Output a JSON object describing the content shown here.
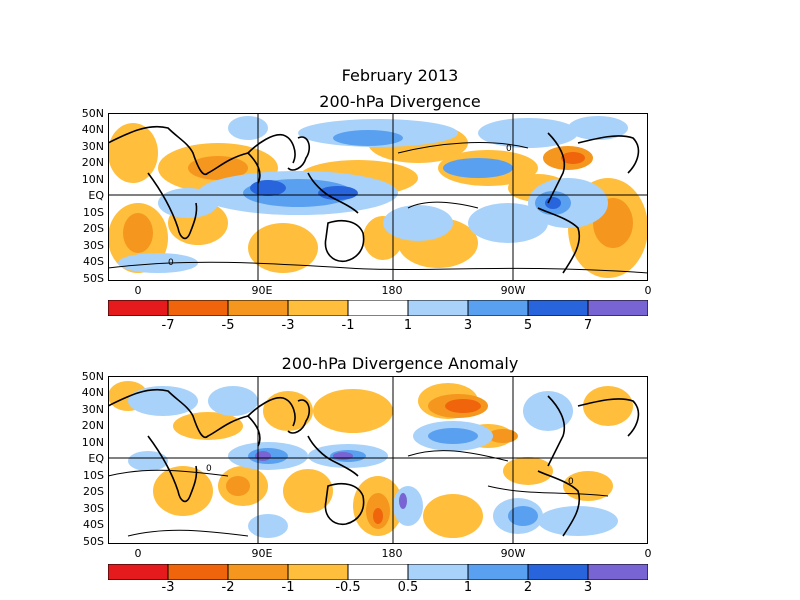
{
  "header": {
    "date": "February 2013",
    "title_top": "200-hPa Divergence",
    "title_bottom": "200-hPa Divergence Anomaly"
  },
  "latitude_labels": [
    "50N",
    "40N",
    "30N",
    "20N",
    "10N",
    "EQ",
    "10S",
    "20S",
    "30S",
    "40S",
    "50S"
  ],
  "longitude_labels": [
    "0",
    "90E",
    "180",
    "90W",
    "0"
  ],
  "colorbar_colors": [
    "#e41a1c",
    "#f0640c",
    "#f5961e",
    "#ffbe3c",
    "#ffffff",
    "#a8d2fa",
    "#5aa0f0",
    "#2864dc",
    "#7864d2"
  ],
  "colorbar_top_labels": [
    "-7",
    "-5",
    "-3",
    "-1",
    "1",
    "3",
    "5",
    "7"
  ],
  "colorbar_bottom_labels": [
    "-3",
    "-2",
    "-1",
    "-0.5",
    "0.5",
    "1",
    "2",
    "3"
  ],
  "contour_labels": {
    "zero": "0"
  }
}
